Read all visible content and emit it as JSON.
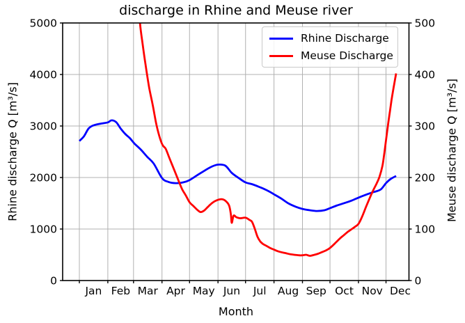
{
  "chart_data": {
    "type": "line",
    "title": "discharge in Rhine and Meuse river",
    "x_axis": {
      "label": "Month",
      "unit": "day_of_year_from_jan1",
      "range_days": [
        -18.2,
        359
      ],
      "month_labels": [
        "Jan",
        "Feb",
        "Mar",
        "Apr",
        "May",
        "Jun",
        "Jul",
        "Aug",
        "Sep",
        "Oct",
        "Nov",
        "Dec"
      ],
      "month_label_days": [
        15.5,
        45,
        74.5,
        105,
        135.5,
        166,
        196.5,
        227.5,
        258,
        288.5,
        319,
        349.5
      ],
      "month_grid_days": [
        0,
        31,
        59,
        90,
        120,
        151,
        181,
        212,
        243,
        273,
        304,
        334
      ],
      "grid": true
    },
    "y_left": {
      "label": "Rhine discharge Q [m³/s]",
      "range": [
        0,
        5000
      ],
      "tick_values": [
        0,
        1000,
        2000,
        3000,
        4000,
        5000
      ],
      "tick_labels": [
        "0",
        "1000",
        "2000",
        "3000",
        "4000",
        "5000"
      ]
    },
    "y_right": {
      "label": "Meuse discharge Q [m³/s]",
      "range": [
        0,
        500
      ],
      "tick_values": [
        0,
        100,
        200,
        300,
        400,
        500
      ],
      "tick_labels": [
        "0",
        "100",
        "200",
        "300",
        "400",
        "500"
      ]
    },
    "grid_color": "#b0b0b0",
    "legend_position": "upper right",
    "series": [
      {
        "name": "Rhine Discharge",
        "axis": "left",
        "color": "#0000ff",
        "points": [
          [
            0,
            2710
          ],
          [
            5,
            2800
          ],
          [
            10,
            2950
          ],
          [
            15,
            3010
          ],
          [
            23,
            3045
          ],
          [
            31,
            3070
          ],
          [
            35,
            3110
          ],
          [
            40,
            3075
          ],
          [
            45,
            2950
          ],
          [
            50,
            2845
          ],
          [
            55,
            2765
          ],
          [
            60,
            2660
          ],
          [
            67,
            2540
          ],
          [
            74,
            2400
          ],
          [
            81,
            2270
          ],
          [
            90,
            1990
          ],
          [
            97,
            1915
          ],
          [
            105,
            1890
          ],
          [
            113,
            1905
          ],
          [
            120,
            1950
          ],
          [
            128,
            2040
          ],
          [
            136,
            2130
          ],
          [
            144,
            2210
          ],
          [
            151,
            2250
          ],
          [
            159,
            2230
          ],
          [
            166,
            2090
          ],
          [
            174,
            1985
          ],
          [
            181,
            1905
          ],
          [
            189,
            1865
          ],
          [
            197,
            1810
          ],
          [
            205,
            1745
          ],
          [
            212,
            1675
          ],
          [
            220,
            1590
          ],
          [
            228,
            1495
          ],
          [
            236,
            1430
          ],
          [
            243,
            1390
          ],
          [
            251,
            1365
          ],
          [
            259,
            1350
          ],
          [
            267,
            1365
          ],
          [
            273,
            1405
          ],
          [
            281,
            1460
          ],
          [
            289,
            1505
          ],
          [
            297,
            1555
          ],
          [
            304,
            1610
          ],
          [
            312,
            1665
          ],
          [
            320,
            1715
          ],
          [
            328,
            1765
          ],
          [
            334,
            1890
          ],
          [
            339,
            1970
          ],
          [
            345,
            2030
          ]
        ]
      },
      {
        "name": "Meuse Discharge",
        "axis": "right",
        "color": "#ff0000",
        "points": [
          [
            64,
            560
          ],
          [
            66,
            500
          ],
          [
            69,
            458
          ],
          [
            72,
            420
          ],
          [
            76,
            375
          ],
          [
            80,
            340
          ],
          [
            84,
            302
          ],
          [
            88,
            275
          ],
          [
            91,
            262
          ],
          [
            94,
            256
          ],
          [
            98,
            238
          ],
          [
            103,
            216
          ],
          [
            108,
            194
          ],
          [
            112,
            177
          ],
          [
            116,
            165
          ],
          [
            120,
            152
          ],
          [
            124,
            145
          ],
          [
            128,
            138
          ],
          [
            132,
            133
          ],
          [
            136,
            136
          ],
          [
            140,
            143
          ],
          [
            145,
            151
          ],
          [
            150,
            156
          ],
          [
            155,
            158
          ],
          [
            159,
            155
          ],
          [
            163,
            146
          ],
          [
            165,
            129
          ],
          [
            166,
            112
          ],
          [
            168,
            126
          ],
          [
            171,
            123
          ],
          [
            175,
            121
          ],
          [
            181,
            122
          ],
          [
            185,
            118
          ],
          [
            188,
            114
          ],
          [
            191,
            101
          ],
          [
            194,
            85
          ],
          [
            197,
            76
          ],
          [
            200,
            71
          ],
          [
            204,
            67
          ],
          [
            208,
            63
          ],
          [
            212,
            60
          ],
          [
            216,
            57
          ],
          [
            220,
            55
          ],
          [
            225,
            53
          ],
          [
            230,
            51
          ],
          [
            234,
            50
          ],
          [
            239,
            49
          ],
          [
            243,
            49
          ],
          [
            247,
            50
          ],
          [
            251,
            48
          ],
          [
            256,
            50
          ],
          [
            260,
            52
          ],
          [
            264,
            55
          ],
          [
            268,
            58
          ],
          [
            272,
            62
          ],
          [
            276,
            68
          ],
          [
            280,
            75
          ],
          [
            284,
            82
          ],
          [
            288,
            88
          ],
          [
            292,
            94
          ],
          [
            296,
            99
          ],
          [
            300,
            104
          ],
          [
            304,
            110
          ],
          [
            308,
            124
          ],
          [
            312,
            142
          ],
          [
            316,
            159
          ],
          [
            320,
            175
          ],
          [
            324,
            189
          ],
          [
            327,
            202
          ],
          [
            330,
            222
          ],
          [
            332,
            245
          ],
          [
            334,
            272
          ],
          [
            336,
            300
          ],
          [
            338,
            325
          ],
          [
            340,
            350
          ],
          [
            342,
            372
          ],
          [
            344,
            392
          ],
          [
            345,
            402
          ]
        ]
      }
    ]
  }
}
